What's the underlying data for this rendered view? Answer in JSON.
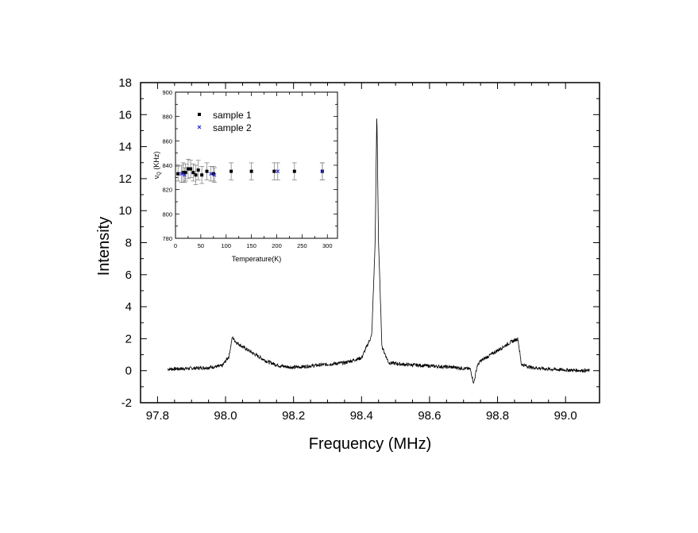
{
  "chart_data": [
    {
      "type": "line",
      "xlabel": "Frequency (MHz)",
      "ylabel": "Intensity",
      "xlim": [
        97.75,
        99.1
      ],
      "ylim": [
        -2,
        18
      ],
      "x_ticks": [
        97.8,
        98.0,
        98.2,
        98.4,
        98.6,
        98.8,
        99.0
      ],
      "x_tick_labels": [
        "97.8",
        "98.0",
        "98.2",
        "98.4",
        "98.6",
        "98.8",
        "99.0"
      ],
      "y_ticks": [
        -2,
        0,
        2,
        4,
        6,
        8,
        10,
        12,
        14,
        16,
        18
      ],
      "y_tick_labels": [
        "-2",
        "0",
        "2",
        "4",
        "6",
        "8",
        "10",
        "12",
        "14",
        "16",
        "18"
      ],
      "grid": false,
      "line_color": "#000000",
      "series": [
        {
          "x": [
            97.83,
            97.9,
            97.95,
            97.99,
            98.01,
            98.02,
            98.03,
            98.05,
            98.08,
            98.12,
            98.16,
            98.2,
            98.25,
            98.3,
            98.35,
            98.4,
            98.43,
            98.44,
            98.445,
            98.45,
            98.46,
            98.48,
            98.52,
            98.6,
            98.68,
            98.72,
            98.73,
            98.74,
            98.75,
            98.78,
            98.81,
            98.84,
            98.86,
            98.87,
            98.9,
            98.95,
            99.0,
            99.07
          ],
          "y": [
            0.1,
            0.15,
            0.2,
            0.3,
            0.9,
            2.1,
            1.8,
            1.5,
            1.1,
            0.6,
            0.3,
            0.2,
            0.3,
            0.4,
            0.5,
            0.8,
            2.2,
            8.0,
            16.2,
            8.0,
            1.5,
            0.5,
            0.4,
            0.3,
            0.2,
            0.1,
            -0.8,
            0.3,
            0.6,
            1.0,
            1.4,
            1.8,
            2.0,
            0.4,
            0.2,
            0.1,
            0.05,
            0.0
          ]
        }
      ]
    },
    {
      "type": "scatter",
      "xlabel": "Temperature(K)",
      "ylabel_main": "ν",
      "ylabel_sub": "Q",
      "ylabel_rest": " (KHz)",
      "xlim": [
        0,
        320
      ],
      "ylim": [
        780,
        900
      ],
      "x_ticks": [
        0,
        50,
        100,
        150,
        200,
        250,
        300
      ],
      "x_tick_labels": [
        "0",
        "50",
        "100",
        "150",
        "200",
        "250",
        "300"
      ],
      "y_ticks": [
        780,
        800,
        820,
        840,
        860,
        880,
        900
      ],
      "y_tick_labels": [
        "780",
        "800",
        "820",
        "840",
        "860",
        "880",
        "900"
      ],
      "legend_position": "top-center",
      "series": [
        {
          "name": "sample 1",
          "marker": "square",
          "color": "#000000",
          "points": [
            {
              "x": 5,
              "y": 833,
              "err": 6
            },
            {
              "x": 15,
              "y": 834,
              "err": 8
            },
            {
              "x": 20,
              "y": 834,
              "err": 7
            },
            {
              "x": 25,
              "y": 837,
              "err": 8
            },
            {
              "x": 30,
              "y": 837,
              "err": 7
            },
            {
              "x": 35,
              "y": 834,
              "err": 7
            },
            {
              "x": 40,
              "y": 832,
              "err": 8
            },
            {
              "x": 45,
              "y": 836,
              "err": 8
            },
            {
              "x": 52,
              "y": 832,
              "err": 7
            },
            {
              "x": 62,
              "y": 835,
              "err": 7
            },
            {
              "x": 75,
              "y": 833,
              "err": 6
            },
            {
              "x": 110,
              "y": 835,
              "err": 7
            },
            {
              "x": 150,
              "y": 835,
              "err": 7
            },
            {
              "x": 195,
              "y": 835,
              "err": 7
            },
            {
              "x": 235,
              "y": 835,
              "err": 7
            },
            {
              "x": 290,
              "y": 835,
              "err": 7
            }
          ]
        },
        {
          "name": "sample 2",
          "marker": "x",
          "color": "#2a2ad8",
          "points": [
            {
              "x": 12,
              "y": 833,
              "err": 7
            },
            {
              "x": 18,
              "y": 832,
              "err": 6
            },
            {
              "x": 70,
              "y": 833,
              "err": 6
            },
            {
              "x": 77,
              "y": 832,
              "err": 6
            },
            {
              "x": 202,
              "y": 835,
              "err": 7
            },
            {
              "x": 290,
              "y": 835,
              "err": 7
            }
          ]
        }
      ]
    }
  ]
}
